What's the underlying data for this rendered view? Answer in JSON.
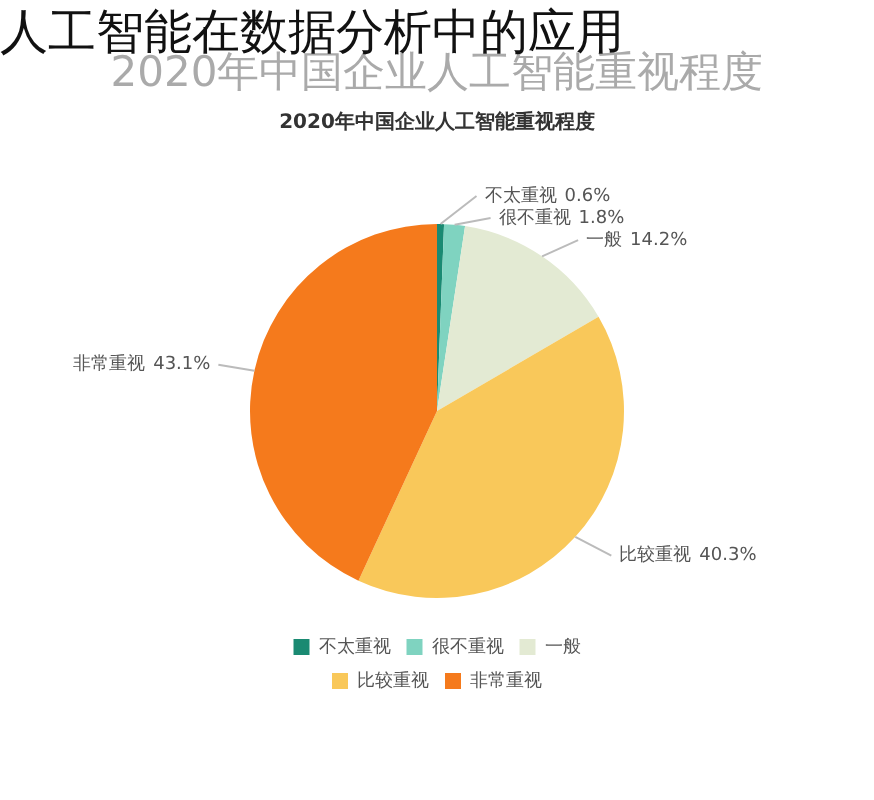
{
  "chart_data": {
    "type": "pie",
    "title": "人工智能在数据分析中的应用",
    "subtitle": "2020年中国企业人工智能重视程度",
    "annotations": [
      "2020年中国企业人工智能重视程度"
    ],
    "categories": [
      "不太重视",
      "很不重视",
      "一般",
      "比较重视",
      "非常重视"
    ],
    "values": [
      0.6,
      1.8,
      14.2,
      40.3,
      43.1
    ],
    "colors": [
      "#1a8a72",
      "#7fd3c0",
      "#e3ead3",
      "#f9c85a",
      "#f57a1c"
    ],
    "value_labels": [
      "0.6%",
      "1.8%",
      "14.2%",
      "40.3%",
      "43.1%"
    ],
    "legend": "bottom"
  }
}
